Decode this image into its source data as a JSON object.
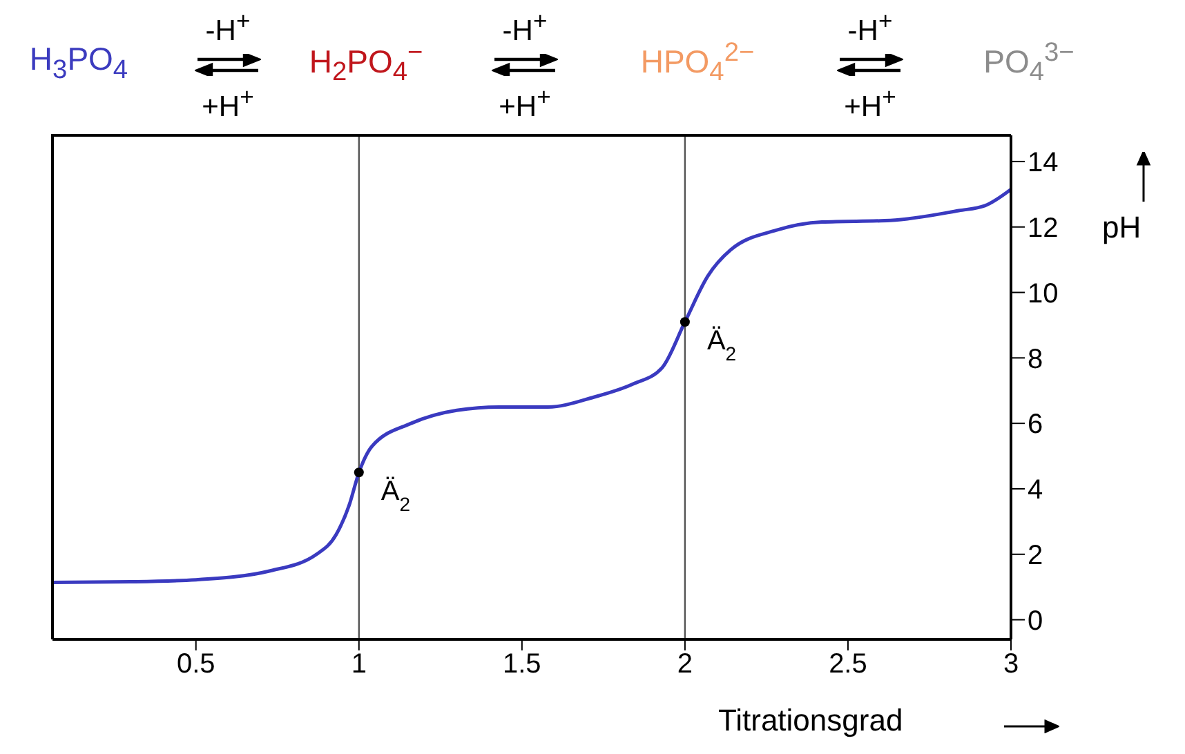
{
  "chart_data": {
    "type": "line",
    "xlabel": "Titrationsgrad",
    "ylabel": "pH",
    "xlim": [
      0.06,
      3
    ],
    "ylim": [
      -0.6,
      14.8
    ],
    "xticks": [
      0.5,
      1,
      1.5,
      2,
      2.5,
      3
    ],
    "yticks": [
      0,
      2,
      4,
      6,
      8,
      10,
      12,
      14
    ],
    "ref_lines": [
      {
        "axis": "x",
        "value": 1,
        "color": "#555555"
      },
      {
        "axis": "x",
        "value": 2,
        "color": "#555555"
      }
    ],
    "series": [
      {
        "color": "#3a3ac0",
        "marker": "none",
        "x": [
          0.06,
          0.3,
          0.5,
          0.73,
          0.87,
          0.93,
          0.97,
          1.0,
          1.04,
          1.16,
          1.3,
          1.43,
          1.58,
          1.72,
          1.84,
          1.93,
          2.0,
          2.07,
          2.14,
          2.28,
          2.42,
          2.63,
          2.84,
          2.92,
          3.0
        ],
        "values": [
          1.14,
          1.16,
          1.22,
          1.5,
          2.0,
          2.6,
          3.5,
          4.5,
          5.3,
          6.0,
          6.4,
          6.5,
          6.5,
          6.8,
          7.2,
          7.7,
          9.1,
          10.5,
          11.3,
          11.9,
          12.15,
          12.2,
          12.5,
          12.65,
          13.15
        ]
      },
      {
        "type": "scatter",
        "color": "#000000",
        "marker": "circle",
        "x": [
          1,
          2
        ],
        "values": [
          4.5,
          9.1
        ]
      }
    ],
    "annotations": [
      "H$_{3}$PO$_{4}$",
      "-H$^{+}$",
      "+H$^{+}$",
      "H$_{2}$PO$_{4}$$^{−}$",
      "-H$^{+}$",
      "+H$^{+}$",
      "HPO$_{4}$$^{2−}$",
      "-H$^{+}$",
      "+H$^{+}$",
      "PO$_{4}$$^{3−}$",
      {
        "text": "Ä$_{2}$",
        "x": 1,
        "y": 4.5
      },
      {
        "text": "Ä$_{2}$",
        "x": 2,
        "y": 9.1
      }
    ]
  }
}
